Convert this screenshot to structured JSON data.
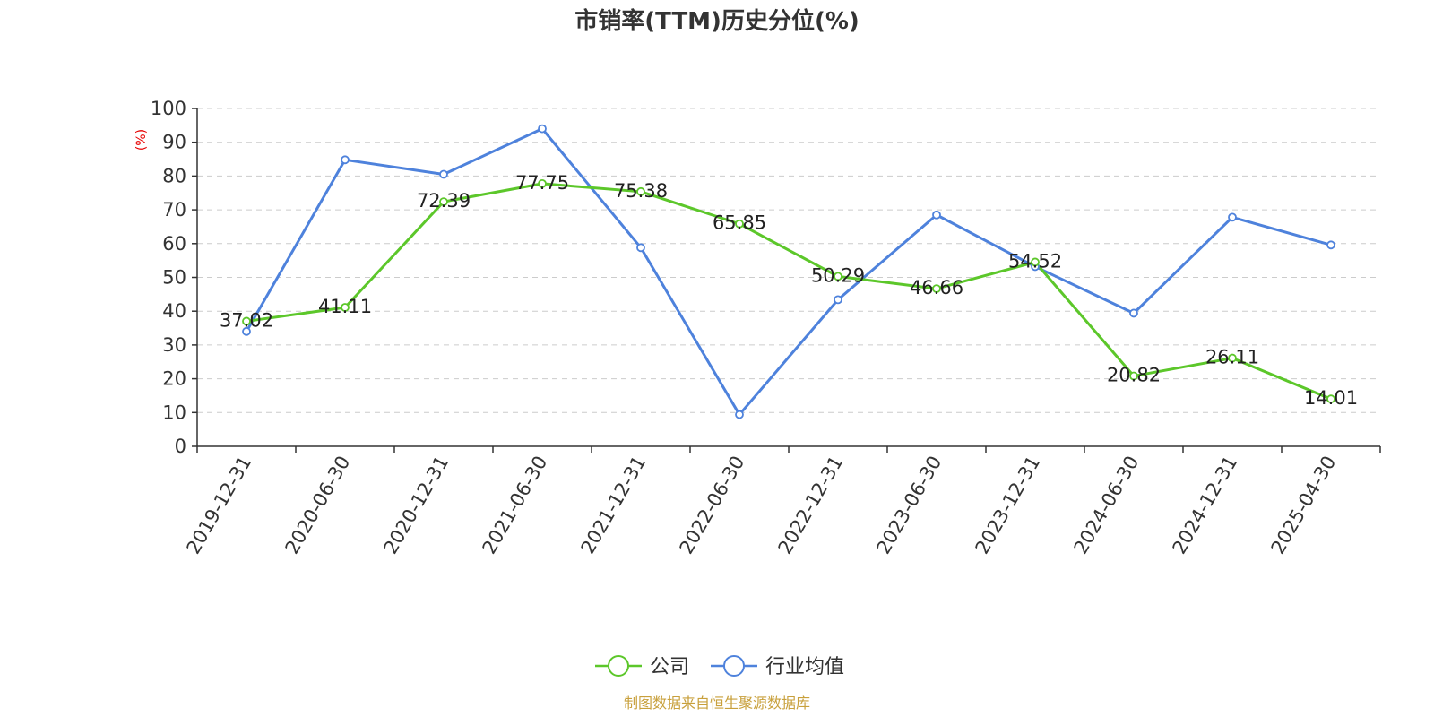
{
  "chart_data": {
    "type": "line",
    "title": "市销率(TTM)历史分位(%)",
    "ylabel": "(%)",
    "ylim": [
      0,
      100
    ],
    "yticks": [
      0,
      10,
      20,
      30,
      40,
      50,
      60,
      70,
      80,
      90,
      100
    ],
    "grid": true,
    "legend_position": "bottom-center",
    "x": [
      "2019-12-31",
      "2020-06-30",
      "2020-12-31",
      "2021-06-30",
      "2021-12-31",
      "2022-06-30",
      "2022-12-31",
      "2023-06-30",
      "2023-12-31",
      "2024-06-30",
      "2024-12-31",
      "2025-04-30"
    ],
    "series": [
      {
        "name": "公司",
        "color": "#5cc72a",
        "values": [
          37.02,
          41.11,
          72.39,
          77.75,
          75.38,
          65.85,
          50.29,
          46.66,
          54.52,
          20.82,
          26.11,
          14.01
        ],
        "labels": [
          "37.02",
          "41.11",
          "72.39",
          "77.75",
          "75.38",
          "65.85",
          "50.29",
          "46.66",
          "54.52",
          "20.82",
          "26.11",
          "14.01"
        ]
      },
      {
        "name": "行业均值",
        "color": "#4e82dc",
        "values": [
          34.0,
          84.8,
          80.5,
          94.0,
          58.8,
          9.4,
          43.4,
          68.5,
          53.2,
          39.4,
          67.8,
          59.6
        ]
      }
    ],
    "source": "制图数据来自恒生聚源数据库",
    "colors": {
      "axis": "#333333",
      "grid": "#cccccc",
      "ylabel": "#e60000",
      "source": "#c8a03c"
    }
  }
}
